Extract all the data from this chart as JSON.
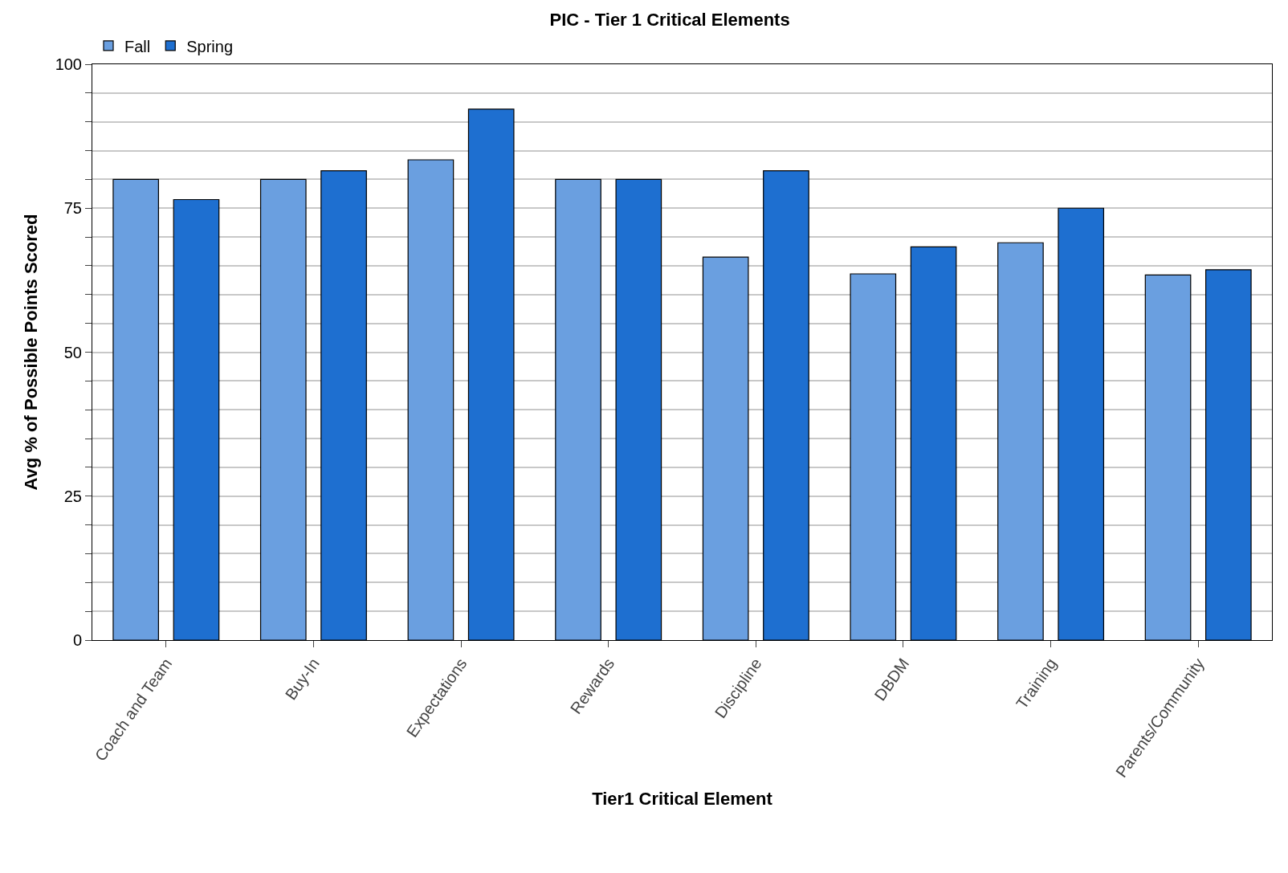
{
  "chart_data": {
    "type": "bar",
    "title": "PIC - Tier 1 Critical Elements",
    "xlabel": "Tier1 Critical Element",
    "ylabel": "Avg % of Possible Points Scored",
    "categories": [
      "Coach and Team",
      "Buy-In",
      "Expectations",
      "Rewards",
      "Discipline",
      "DBDM",
      "Training",
      "Parents/Community"
    ],
    "series": [
      {
        "name": "Fall",
        "color": "#6a9fe0",
        "values": [
          80,
          80,
          83.4,
          80,
          66.5,
          63.6,
          69,
          63.4
        ]
      },
      {
        "name": "Spring",
        "color": "#1e6fd0",
        "values": [
          76.5,
          81.5,
          92.2,
          80,
          81.5,
          68.3,
          75,
          64.3
        ]
      }
    ],
    "ylim": [
      0,
      100
    ],
    "yticks": [
      0,
      {
        "value": 5,
        "label": null
      },
      {
        "value": 10,
        "label": null
      },
      {
        "value": 15,
        "label": null
      },
      {
        "value": 20,
        "label": null
      },
      25,
      {
        "value": 30,
        "label": null
      },
      {
        "value": 35,
        "label": null
      },
      {
        "value": 40,
        "label": null
      },
      {
        "value": 45,
        "label": null
      },
      50,
      {
        "value": 55,
        "label": null
      },
      {
        "value": 60,
        "label": null
      },
      {
        "value": 65,
        "label": null
      },
      {
        "value": 70,
        "label": null
      },
      75,
      {
        "value": 80,
        "label": null
      },
      {
        "value": 85,
        "label": null
      },
      {
        "value": 90,
        "label": null
      },
      {
        "value": 95,
        "label": null
      },
      100
    ],
    "grid": "y",
    "legend": "top left"
  }
}
